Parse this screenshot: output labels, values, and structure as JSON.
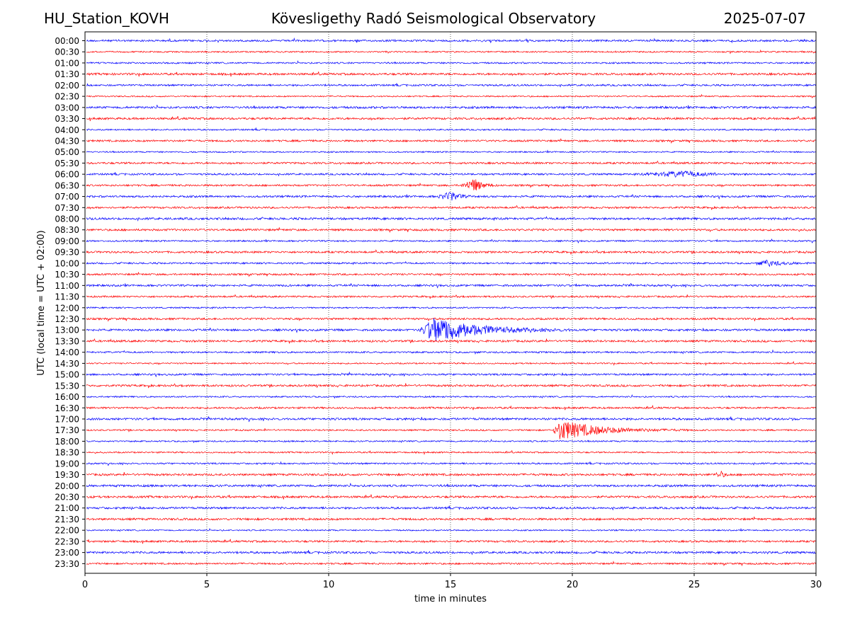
{
  "header": {
    "left": "HU_Station_KOVH",
    "center": "Kövesligethy Radó Seismological Observatory",
    "right": "2025-07-07"
  },
  "chart_data": {
    "type": "line",
    "title": "Kövesligethy Radó Seismological Observatory",
    "xlabel": "time in minutes",
    "ylabel": "UTC (local time = UTC + 02:00)",
    "xlim": [
      0,
      30
    ],
    "xticks": [
      "0",
      "5",
      "10",
      "15",
      "20",
      "25",
      "30"
    ],
    "grid": "vertical dotted",
    "colors": [
      "#0000ff",
      "#ff0000"
    ],
    "rows": [
      "00:00",
      "00:30",
      "01:00",
      "01:30",
      "02:00",
      "02:30",
      "03:00",
      "03:30",
      "04:00",
      "04:30",
      "05:00",
      "05:30",
      "06:00",
      "06:30",
      "07:00",
      "07:30",
      "08:00",
      "08:30",
      "09:00",
      "09:30",
      "10:00",
      "10:30",
      "11:00",
      "11:30",
      "12:00",
      "12:30",
      "13:00",
      "13:30",
      "14:00",
      "14:30",
      "15:00",
      "15:30",
      "16:00",
      "16:30",
      "17:00",
      "17:30",
      "18:00",
      "18:30",
      "19:00",
      "19:30",
      "20:00",
      "20:30",
      "21:00",
      "21:30",
      "22:00",
      "22:30",
      "23:00",
      "23:30"
    ],
    "events": [
      {
        "row": "06:00",
        "x_start": 22.7,
        "x_peak": 24.7,
        "x_end": 27.3,
        "amplitude": 4
      },
      {
        "row": "06:30",
        "x_start": 15.4,
        "x_peak": 16.0,
        "x_end": 17.0,
        "amplitude": 9
      },
      {
        "row": "07:00",
        "x_start": 14.4,
        "x_peak": 15.1,
        "x_end": 16.0,
        "amplitude": 6
      },
      {
        "row": "13:00",
        "x_start": 13.7,
        "x_peak": 14.4,
        "x_end": 20.0,
        "amplitude": 18
      },
      {
        "row": "17:30",
        "x_start": 19.2,
        "x_peak": 19.5,
        "x_end": 24.8,
        "amplitude": 14
      },
      {
        "row": "19:30",
        "x_start": 25.8,
        "x_peak": 26.1,
        "x_end": 26.6,
        "amplitude": 4
      },
      {
        "row": "10:00",
        "x_start": 27.5,
        "x_peak": 28.0,
        "x_end": 30.0,
        "amplitude": 4
      }
    ]
  }
}
